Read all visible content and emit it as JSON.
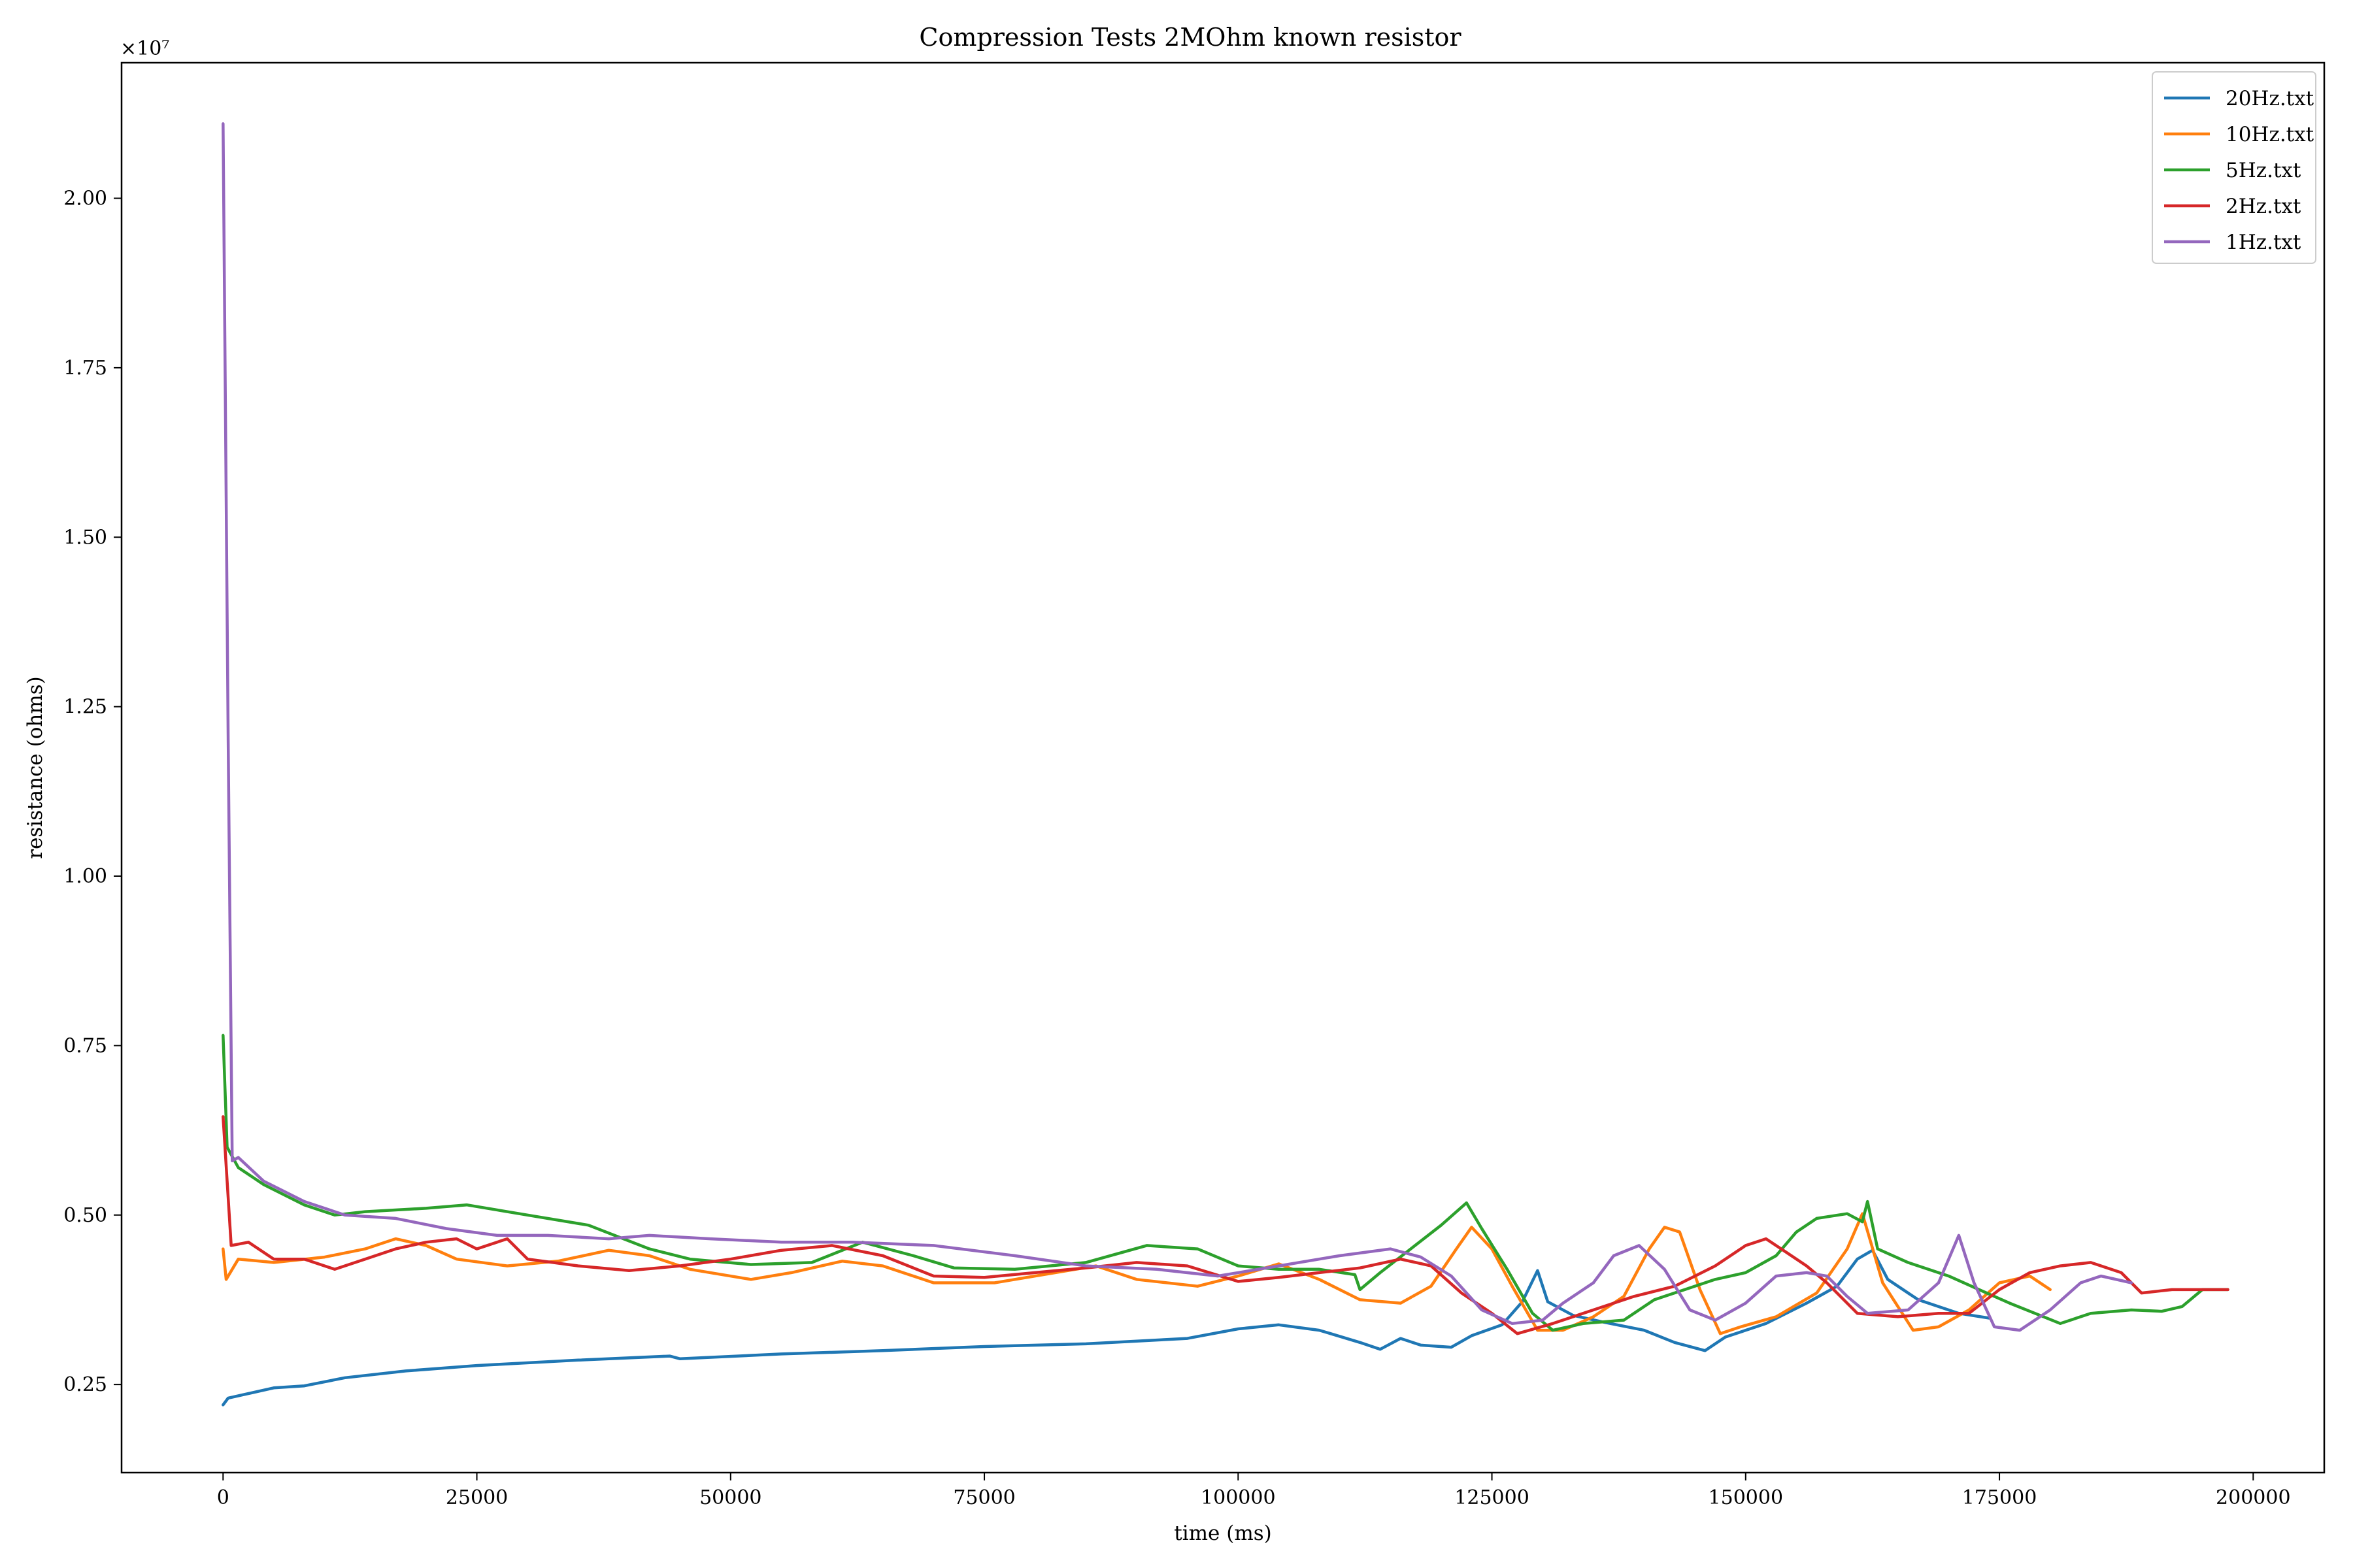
{
  "chart_data": {
    "type": "line",
    "title": "Compression Tests 2MOhm known resistor",
    "xlabel": "time (ms)",
    "ylabel": "resistance (ohms)",
    "y_multiplier_label": "×10⁷",
    "xlim": [
      -10000,
      207000
    ],
    "ylim": [
      1200000,
      22000000
    ],
    "xticks": [
      0,
      25000,
      50000,
      75000,
      100000,
      125000,
      150000,
      175000,
      200000
    ],
    "xtick_labels": [
      "0",
      "25000",
      "50000",
      "75000",
      "100000",
      "125000",
      "150000",
      "175000",
      "200000"
    ],
    "yticks": [
      2500000,
      5000000,
      7500000,
      10000000,
      12500000,
      15000000,
      17500000,
      20000000
    ],
    "ytick_labels": [
      "0.25",
      "0.50",
      "0.75",
      "1.00",
      "1.25",
      "1.50",
      "1.75",
      "2.00"
    ],
    "grid": false,
    "legend_position": "top-right",
    "series": [
      {
        "name": "20Hz.txt",
        "color": "#1f77b4",
        "points": [
          [
            0,
            2200000
          ],
          [
            500,
            2300000
          ],
          [
            2000,
            2350000
          ],
          [
            5000,
            2450000
          ],
          [
            8000,
            2480000
          ],
          [
            12000,
            2600000
          ],
          [
            18000,
            2700000
          ],
          [
            25000,
            2780000
          ],
          [
            35000,
            2860000
          ],
          [
            44000,
            2920000
          ],
          [
            45000,
            2880000
          ],
          [
            55000,
            2950000
          ],
          [
            65000,
            3000000
          ],
          [
            75000,
            3060000
          ],
          [
            85000,
            3100000
          ],
          [
            95000,
            3180000
          ],
          [
            100000,
            3320000
          ],
          [
            104000,
            3380000
          ],
          [
            108000,
            3300000
          ],
          [
            112000,
            3120000
          ],
          [
            114000,
            3020000
          ],
          [
            116000,
            3180000
          ],
          [
            118000,
            3080000
          ],
          [
            121000,
            3050000
          ],
          [
            123000,
            3220000
          ],
          [
            126000,
            3380000
          ],
          [
            128000,
            3720000
          ],
          [
            129500,
            4180000
          ],
          [
            130500,
            3720000
          ],
          [
            133000,
            3520000
          ],
          [
            136000,
            3420000
          ],
          [
            140000,
            3300000
          ],
          [
            143000,
            3120000
          ],
          [
            146000,
            3000000
          ],
          [
            148000,
            3200000
          ],
          [
            152000,
            3400000
          ],
          [
            156000,
            3700000
          ],
          [
            159000,
            3950000
          ],
          [
            161000,
            4350000
          ],
          [
            162500,
            4480000
          ],
          [
            164000,
            4050000
          ],
          [
            167000,
            3750000
          ],
          [
            171000,
            3550000
          ],
          [
            174000,
            3480000
          ]
        ]
      },
      {
        "name": "10Hz.txt",
        "color": "#ff7f0e",
        "points": [
          [
            0,
            4500000
          ],
          [
            300,
            4050000
          ],
          [
            1500,
            4350000
          ],
          [
            5000,
            4300000
          ],
          [
            10000,
            4380000
          ],
          [
            14000,
            4500000
          ],
          [
            17000,
            4650000
          ],
          [
            20000,
            4550000
          ],
          [
            23000,
            4350000
          ],
          [
            28000,
            4250000
          ],
          [
            33000,
            4320000
          ],
          [
            38000,
            4480000
          ],
          [
            42000,
            4400000
          ],
          [
            46000,
            4200000
          ],
          [
            52000,
            4050000
          ],
          [
            56000,
            4150000
          ],
          [
            61000,
            4320000
          ],
          [
            65000,
            4250000
          ],
          [
            70000,
            4000000
          ],
          [
            76000,
            4000000
          ],
          [
            82000,
            4150000
          ],
          [
            86000,
            4250000
          ],
          [
            90000,
            4050000
          ],
          [
            96000,
            3950000
          ],
          [
            100000,
            4100000
          ],
          [
            104000,
            4280000
          ],
          [
            108000,
            4050000
          ],
          [
            112000,
            3750000
          ],
          [
            116000,
            3700000
          ],
          [
            119000,
            3950000
          ],
          [
            121500,
            4500000
          ],
          [
            123000,
            4820000
          ],
          [
            125000,
            4500000
          ],
          [
            127000,
            3950000
          ],
          [
            129500,
            3300000
          ],
          [
            132000,
            3300000
          ],
          [
            135000,
            3500000
          ],
          [
            138000,
            3800000
          ],
          [
            140500,
            4500000
          ],
          [
            142000,
            4820000
          ],
          [
            143500,
            4750000
          ],
          [
            145500,
            3900000
          ],
          [
            147500,
            3250000
          ],
          [
            149500,
            3350000
          ],
          [
            153000,
            3500000
          ],
          [
            157000,
            3850000
          ],
          [
            160000,
            4500000
          ],
          [
            161500,
            5020000
          ],
          [
            163500,
            4000000
          ],
          [
            166500,
            3300000
          ],
          [
            169000,
            3350000
          ],
          [
            172000,
            3600000
          ],
          [
            175000,
            4000000
          ],
          [
            178000,
            4100000
          ],
          [
            180000,
            3900000
          ]
        ]
      },
      {
        "name": "5Hz.txt",
        "color": "#2ca02c",
        "points": [
          [
            0,
            7650000
          ],
          [
            400,
            6000000
          ],
          [
            1500,
            5700000
          ],
          [
            4000,
            5450000
          ],
          [
            8000,
            5150000
          ],
          [
            11000,
            5000000
          ],
          [
            14000,
            5050000
          ],
          [
            20000,
            5100000
          ],
          [
            24000,
            5150000
          ],
          [
            30000,
            5000000
          ],
          [
            36000,
            4850000
          ],
          [
            42000,
            4500000
          ],
          [
            46000,
            4350000
          ],
          [
            52000,
            4270000
          ],
          [
            58000,
            4300000
          ],
          [
            63000,
            4600000
          ],
          [
            68000,
            4400000
          ],
          [
            72000,
            4220000
          ],
          [
            78000,
            4200000
          ],
          [
            85000,
            4300000
          ],
          [
            91000,
            4550000
          ],
          [
            96000,
            4500000
          ],
          [
            100000,
            4250000
          ],
          [
            104000,
            4200000
          ],
          [
            108000,
            4200000
          ],
          [
            111500,
            4120000
          ],
          [
            112000,
            3900000
          ],
          [
            114000,
            4150000
          ],
          [
            117000,
            4500000
          ],
          [
            120000,
            4850000
          ],
          [
            122500,
            5180000
          ],
          [
            124000,
            4800000
          ],
          [
            126500,
            4200000
          ],
          [
            129000,
            3550000
          ],
          [
            131000,
            3300000
          ],
          [
            134000,
            3400000
          ],
          [
            138000,
            3450000
          ],
          [
            141000,
            3750000
          ],
          [
            144000,
            3900000
          ],
          [
            147000,
            4050000
          ],
          [
            150000,
            4150000
          ],
          [
            153000,
            4400000
          ],
          [
            155000,
            4750000
          ],
          [
            157000,
            4950000
          ],
          [
            160000,
            5020000
          ],
          [
            161500,
            4900000
          ],
          [
            162000,
            5200000
          ],
          [
            163000,
            4500000
          ],
          [
            166000,
            4300000
          ],
          [
            170000,
            4100000
          ],
          [
            173000,
            3900000
          ],
          [
            176000,
            3700000
          ],
          [
            178500,
            3550000
          ],
          [
            181000,
            3400000
          ],
          [
            184000,
            3550000
          ],
          [
            188000,
            3600000
          ],
          [
            191000,
            3580000
          ],
          [
            193000,
            3650000
          ],
          [
            195000,
            3900000
          ],
          [
            197500,
            3900000
          ]
        ]
      },
      {
        "name": "2Hz.txt",
        "color": "#d62728",
        "points": [
          [
            0,
            6450000
          ],
          [
            400,
            5500000
          ],
          [
            800,
            4550000
          ],
          [
            2500,
            4600000
          ],
          [
            5000,
            4350000
          ],
          [
            8000,
            4350000
          ],
          [
            11000,
            4200000
          ],
          [
            14000,
            4350000
          ],
          [
            17000,
            4500000
          ],
          [
            20000,
            4600000
          ],
          [
            23000,
            4650000
          ],
          [
            25000,
            4500000
          ],
          [
            28000,
            4650000
          ],
          [
            30000,
            4350000
          ],
          [
            35000,
            4250000
          ],
          [
            40000,
            4180000
          ],
          [
            45000,
            4250000
          ],
          [
            50000,
            4350000
          ],
          [
            55000,
            4480000
          ],
          [
            60000,
            4550000
          ],
          [
            65000,
            4400000
          ],
          [
            70000,
            4100000
          ],
          [
            75000,
            4080000
          ],
          [
            80000,
            4150000
          ],
          [
            85000,
            4220000
          ],
          [
            90000,
            4300000
          ],
          [
            95000,
            4250000
          ],
          [
            100000,
            4020000
          ],
          [
            104000,
            4080000
          ],
          [
            108000,
            4150000
          ],
          [
            112000,
            4220000
          ],
          [
            116000,
            4350000
          ],
          [
            119000,
            4250000
          ],
          [
            122000,
            3850000
          ],
          [
            125000,
            3550000
          ],
          [
            127500,
            3250000
          ],
          [
            131000,
            3400000
          ],
          [
            135000,
            3600000
          ],
          [
            139000,
            3800000
          ],
          [
            143000,
            3950000
          ],
          [
            147000,
            4250000
          ],
          [
            150000,
            4550000
          ],
          [
            152000,
            4650000
          ],
          [
            154000,
            4450000
          ],
          [
            156000,
            4250000
          ],
          [
            158000,
            4000000
          ],
          [
            161000,
            3550000
          ],
          [
            165000,
            3500000
          ],
          [
            169000,
            3550000
          ],
          [
            172000,
            3550000
          ],
          [
            175000,
            3900000
          ],
          [
            178000,
            4150000
          ],
          [
            181000,
            4250000
          ],
          [
            184000,
            4300000
          ],
          [
            187000,
            4150000
          ],
          [
            189000,
            3850000
          ],
          [
            192000,
            3900000
          ],
          [
            194000,
            3900000
          ],
          [
            196000,
            3900000
          ],
          [
            197500,
            3900000
          ]
        ]
      },
      {
        "name": "1Hz.txt",
        "color": "#9467bd",
        "points": [
          [
            0,
            21100000
          ],
          [
            500,
            12000000
          ],
          [
            900,
            5800000
          ],
          [
            1500,
            5850000
          ],
          [
            4000,
            5500000
          ],
          [
            8000,
            5200000
          ],
          [
            12000,
            5000000
          ],
          [
            17000,
            4950000
          ],
          [
            22000,
            4800000
          ],
          [
            27000,
            4700000
          ],
          [
            32000,
            4700000
          ],
          [
            38000,
            4650000
          ],
          [
            42000,
            4700000
          ],
          [
            48000,
            4650000
          ],
          [
            55000,
            4600000
          ],
          [
            62000,
            4600000
          ],
          [
            70000,
            4550000
          ],
          [
            78000,
            4400000
          ],
          [
            85000,
            4250000
          ],
          [
            92000,
            4200000
          ],
          [
            98000,
            4100000
          ],
          [
            104000,
            4250000
          ],
          [
            110000,
            4400000
          ],
          [
            115000,
            4500000
          ],
          [
            118000,
            4380000
          ],
          [
            121000,
            4100000
          ],
          [
            124000,
            3600000
          ],
          [
            127000,
            3400000
          ],
          [
            130000,
            3450000
          ],
          [
            132000,
            3700000
          ],
          [
            135000,
            4000000
          ],
          [
            137000,
            4400000
          ],
          [
            139500,
            4550000
          ],
          [
            142000,
            4200000
          ],
          [
            144500,
            3600000
          ],
          [
            147000,
            3450000
          ],
          [
            150000,
            3700000
          ],
          [
            153000,
            4100000
          ],
          [
            156000,
            4150000
          ],
          [
            158000,
            4100000
          ],
          [
            160000,
            3800000
          ],
          [
            162000,
            3550000
          ],
          [
            166000,
            3600000
          ],
          [
            169000,
            4000000
          ],
          [
            171000,
            4700000
          ],
          [
            172500,
            4000000
          ],
          [
            174500,
            3350000
          ],
          [
            177000,
            3300000
          ],
          [
            180000,
            3600000
          ],
          [
            183000,
            4000000
          ],
          [
            185000,
            4100000
          ],
          [
            188000,
            4000000
          ]
        ]
      }
    ]
  }
}
